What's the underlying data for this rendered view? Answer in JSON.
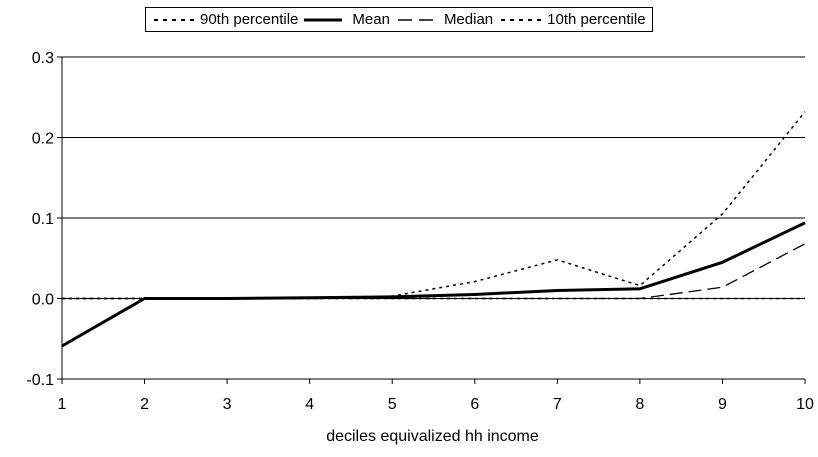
{
  "chart_data": {
    "type": "line",
    "title": "",
    "xlabel": "deciles equivalized hh income",
    "ylabel": "",
    "x": [
      1,
      2,
      3,
      4,
      5,
      6,
      7,
      8,
      9,
      10
    ],
    "x_tick_labels": [
      "1",
      "2",
      "3",
      "4",
      "5",
      "6",
      "7",
      "8",
      "9",
      "10"
    ],
    "ylim": [
      -0.1,
      0.3
    ],
    "y_ticks": [
      -0.1,
      0.0,
      0.1,
      0.2,
      0.3
    ],
    "y_tick_labels": [
      "-0.1",
      "0.0",
      "0.1",
      "0.2",
      "0.3"
    ],
    "grid": "horizontal",
    "legend_position": "top",
    "series": [
      {
        "name": "90th percentile",
        "style": "dotted",
        "color": "#000000",
        "values": [
          0.0,
          0.0,
          0.0,
          0.0,
          0.003,
          0.021,
          0.048,
          0.016,
          0.105,
          0.232
        ]
      },
      {
        "name": "Mean",
        "style": "solid-thick",
        "color": "#000000",
        "values": [
          -0.059,
          0.0,
          0.0,
          0.001,
          0.002,
          0.005,
          0.01,
          0.012,
          0.045,
          0.094
        ]
      },
      {
        "name": "Median",
        "style": "long-dash",
        "color": "#000000",
        "values": [
          0.0,
          0.0,
          0.0,
          0.0,
          0.0,
          0.0,
          0.0,
          0.0,
          0.014,
          0.068
        ]
      },
      {
        "name": "10th percentile",
        "style": "dotted",
        "color": "#000000",
        "values": [
          0.0,
          0.0,
          0.0,
          0.0,
          0.0,
          0.0,
          0.0,
          0.0,
          0.0,
          0.0
        ]
      }
    ]
  }
}
